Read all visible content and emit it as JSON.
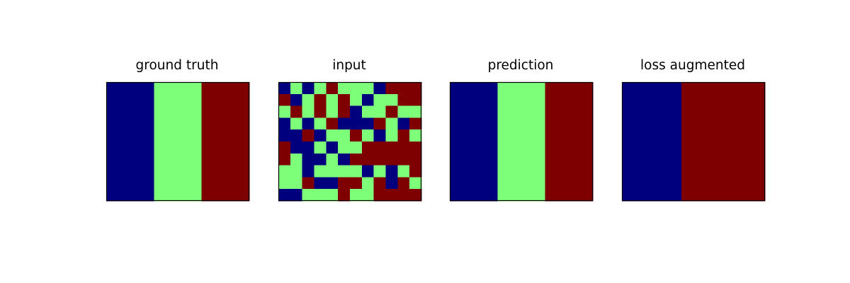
{
  "colors": {
    "0": "#00007f",
    "1": "#7dff7a",
    "2": "#7f0000",
    "frame": "#000000"
  },
  "chart_data": [
    {
      "type": "heatmap",
      "title": "ground truth",
      "grid": false,
      "rows": 10,
      "cols": 12,
      "matrix": [
        [
          0,
          0,
          0,
          0,
          1,
          1,
          1,
          1,
          2,
          2,
          2,
          2
        ],
        [
          0,
          0,
          0,
          0,
          1,
          1,
          1,
          1,
          2,
          2,
          2,
          2
        ],
        [
          0,
          0,
          0,
          0,
          1,
          1,
          1,
          1,
          2,
          2,
          2,
          2
        ],
        [
          0,
          0,
          0,
          0,
          1,
          1,
          1,
          1,
          2,
          2,
          2,
          2
        ],
        [
          0,
          0,
          0,
          0,
          1,
          1,
          1,
          1,
          2,
          2,
          2,
          2
        ],
        [
          0,
          0,
          0,
          0,
          1,
          1,
          1,
          1,
          2,
          2,
          2,
          2
        ],
        [
          0,
          0,
          0,
          0,
          1,
          1,
          1,
          1,
          2,
          2,
          2,
          2
        ],
        [
          0,
          0,
          0,
          0,
          1,
          1,
          1,
          1,
          2,
          2,
          2,
          2
        ],
        [
          0,
          0,
          0,
          0,
          1,
          1,
          1,
          1,
          2,
          2,
          2,
          2
        ],
        [
          0,
          0,
          0,
          0,
          1,
          1,
          1,
          1,
          2,
          2,
          2,
          2
        ]
      ]
    },
    {
      "type": "heatmap",
      "title": "input",
      "grid": false,
      "rows": 10,
      "cols": 12,
      "matrix": [
        [
          0,
          1,
          0,
          1,
          2,
          1,
          1,
          1,
          0,
          2,
          2,
          2
        ],
        [
          2,
          0,
          1,
          2,
          1,
          2,
          1,
          0,
          1,
          1,
          2,
          2
        ],
        [
          1,
          2,
          1,
          2,
          1,
          2,
          0,
          1,
          1,
          2,
          1,
          1
        ],
        [
          0,
          1,
          0,
          1,
          2,
          0,
          0,
          0,
          2,
          1,
          0,
          2
        ],
        [
          0,
          0,
          2,
          0,
          1,
          1,
          2,
          1,
          0,
          1,
          2,
          1
        ],
        [
          2,
          0,
          0,
          1,
          0,
          1,
          1,
          2,
          2,
          2,
          2,
          2
        ],
        [
          2,
          1,
          0,
          0,
          1,
          0,
          2,
          2,
          2,
          2,
          2,
          2
        ],
        [
          1,
          1,
          0,
          1,
          1,
          1,
          1,
          0,
          1,
          0,
          1,
          2
        ],
        [
          1,
          1,
          2,
          0,
          0,
          2,
          2,
          1,
          2,
          0,
          2,
          1
        ],
        [
          0,
          0,
          1,
          1,
          1,
          2,
          1,
          1,
          2,
          2,
          2,
          2
        ]
      ]
    },
    {
      "type": "heatmap",
      "title": "prediction",
      "grid": false,
      "rows": 10,
      "cols": 12,
      "matrix": [
        [
          0,
          0,
          0,
          0,
          1,
          1,
          1,
          1,
          2,
          2,
          2,
          2
        ],
        [
          0,
          0,
          0,
          0,
          1,
          1,
          1,
          1,
          2,
          2,
          2,
          2
        ],
        [
          0,
          0,
          0,
          0,
          1,
          1,
          1,
          1,
          2,
          2,
          2,
          2
        ],
        [
          0,
          0,
          0,
          0,
          1,
          1,
          1,
          1,
          2,
          2,
          2,
          2
        ],
        [
          0,
          0,
          0,
          0,
          1,
          1,
          1,
          1,
          2,
          2,
          2,
          2
        ],
        [
          0,
          0,
          0,
          0,
          1,
          1,
          1,
          1,
          2,
          2,
          2,
          2
        ],
        [
          0,
          0,
          0,
          0,
          1,
          1,
          1,
          1,
          2,
          2,
          2,
          2
        ],
        [
          0,
          0,
          0,
          0,
          1,
          1,
          1,
          1,
          2,
          2,
          2,
          2
        ],
        [
          0,
          0,
          0,
          0,
          1,
          1,
          1,
          1,
          2,
          2,
          2,
          2
        ],
        [
          0,
          0,
          0,
          0,
          1,
          1,
          1,
          1,
          2,
          2,
          2,
          2
        ]
      ]
    },
    {
      "type": "heatmap",
      "title": "loss augmented",
      "grid": false,
      "rows": 10,
      "cols": 12,
      "matrix": [
        [
          0,
          0,
          0,
          0,
          0,
          2,
          2,
          2,
          2,
          2,
          2,
          2
        ],
        [
          0,
          0,
          0,
          0,
          0,
          2,
          2,
          2,
          2,
          2,
          2,
          2
        ],
        [
          0,
          0,
          0,
          0,
          0,
          2,
          2,
          2,
          2,
          2,
          2,
          2
        ],
        [
          0,
          0,
          0,
          0,
          0,
          2,
          2,
          2,
          2,
          2,
          2,
          2
        ],
        [
          0,
          0,
          0,
          0,
          0,
          2,
          2,
          2,
          2,
          2,
          2,
          2
        ],
        [
          0,
          0,
          0,
          0,
          0,
          2,
          2,
          2,
          2,
          2,
          2,
          2
        ],
        [
          0,
          0,
          0,
          0,
          0,
          2,
          2,
          2,
          2,
          2,
          2,
          2
        ],
        [
          0,
          0,
          0,
          0,
          0,
          2,
          2,
          2,
          2,
          2,
          2,
          2
        ],
        [
          0,
          0,
          0,
          0,
          0,
          2,
          2,
          2,
          2,
          2,
          2,
          2
        ],
        [
          0,
          0,
          0,
          0,
          0,
          2,
          2,
          2,
          2,
          2,
          2,
          2
        ]
      ]
    }
  ]
}
